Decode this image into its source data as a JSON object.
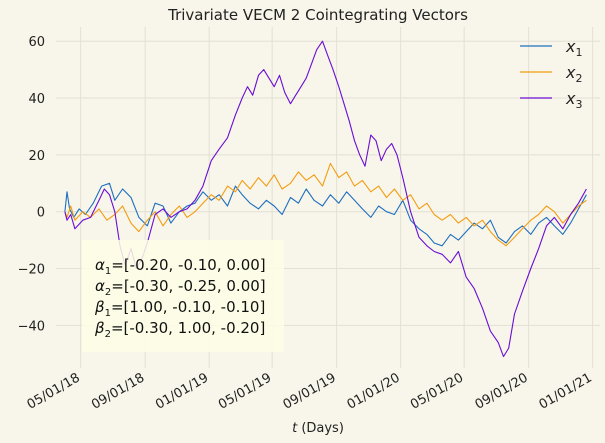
{
  "chart_data": {
    "type": "line",
    "title": "Trivariate VECM 2 Cointegrating Vectors",
    "xlabel_italic": "t",
    "xlabel_rest": " (Days)",
    "ylabel": "",
    "xlim": [
      "2018-03-15",
      "2021-01-15"
    ],
    "ylim": [
      -55,
      65
    ],
    "x_ticks": [
      "2018-05-01",
      "2018-09-01",
      "2019-01-01",
      "2019-05-01",
      "2019-09-01",
      "2020-01-01",
      "2020-05-01",
      "2020-09-01",
      "2021-01-01"
    ],
    "x_tick_labels": [
      "05/01/18",
      "09/01/18",
      "01/01/19",
      "05/01/19",
      "09/01/19",
      "01/01/20",
      "05/01/20",
      "09/01/20",
      "01/01/21"
    ],
    "y_ticks": [
      -40,
      -20,
      0,
      20,
      40,
      60
    ],
    "grid": true,
    "legend_placement": "top-right",
    "background": "#f8f6ea",
    "grid_color": "#e2e0d4",
    "annotation": {
      "lines": [
        {
          "sym": "α",
          "sub": "1",
          "text": "=[-0.20, -0.10, 0.00]"
        },
        {
          "sym": "α",
          "sub": "2",
          "text": "=[-0.30, -0.25, 0.00]"
        },
        {
          "sym": "β",
          "sub": "1",
          "text": "=[1.00, -0.10, -0.10]"
        },
        {
          "sym": "β",
          "sub": "2",
          "text": "=[-0.30, 1.00, -0.20]"
        }
      ],
      "box_color": "#fefee6"
    },
    "series": [
      {
        "name_base": "x",
        "name_sub": "1",
        "color": "#1f6fbf",
        "points": [
          [
            "2018-04-01",
            0
          ],
          [
            "2018-04-05",
            7
          ],
          [
            "2018-04-10",
            1
          ],
          [
            "2018-04-18",
            -2
          ],
          [
            "2018-04-28",
            1
          ],
          [
            "2018-05-10",
            -1
          ],
          [
            "2018-05-25",
            3
          ],
          [
            "2018-06-10",
            9
          ],
          [
            "2018-06-25",
            10
          ],
          [
            "2018-07-05",
            4
          ],
          [
            "2018-07-20",
            8
          ],
          [
            "2018-08-05",
            5
          ],
          [
            "2018-08-20",
            -2
          ],
          [
            "2018-09-05",
            -5
          ],
          [
            "2018-09-20",
            3
          ],
          [
            "2018-10-05",
            2
          ],
          [
            "2018-10-20",
            -4
          ],
          [
            "2018-11-05",
            0
          ],
          [
            "2018-11-20",
            2
          ],
          [
            "2018-12-05",
            3
          ],
          [
            "2018-12-20",
            7
          ],
          [
            "2019-01-05",
            4
          ],
          [
            "2019-01-20",
            6
          ],
          [
            "2019-02-05",
            2
          ],
          [
            "2019-02-20",
            9
          ],
          [
            "2019-03-05",
            6
          ],
          [
            "2019-03-20",
            3
          ],
          [
            "2019-04-05",
            1
          ],
          [
            "2019-04-20",
            4
          ],
          [
            "2019-05-05",
            2
          ],
          [
            "2019-05-20",
            -1
          ],
          [
            "2019-06-05",
            5
          ],
          [
            "2019-06-20",
            3
          ],
          [
            "2019-07-05",
            8
          ],
          [
            "2019-07-20",
            4
          ],
          [
            "2019-08-05",
            2
          ],
          [
            "2019-08-20",
            6
          ],
          [
            "2019-09-05",
            3
          ],
          [
            "2019-09-20",
            7
          ],
          [
            "2019-10-05",
            4
          ],
          [
            "2019-10-20",
            1
          ],
          [
            "2019-11-05",
            -2
          ],
          [
            "2019-11-20",
            2
          ],
          [
            "2019-12-05",
            0
          ],
          [
            "2019-12-20",
            -1
          ],
          [
            "2020-01-05",
            4
          ],
          [
            "2020-01-20",
            -3
          ],
          [
            "2020-02-05",
            -6
          ],
          [
            "2020-02-20",
            -8
          ],
          [
            "2020-03-05",
            -11
          ],
          [
            "2020-03-20",
            -12
          ],
          [
            "2020-04-05",
            -8
          ],
          [
            "2020-04-20",
            -10
          ],
          [
            "2020-05-05",
            -7
          ],
          [
            "2020-05-20",
            -4
          ],
          [
            "2020-06-05",
            -6
          ],
          [
            "2020-06-20",
            -3
          ],
          [
            "2020-07-05",
            -9
          ],
          [
            "2020-07-20",
            -11
          ],
          [
            "2020-08-05",
            -7
          ],
          [
            "2020-08-20",
            -5
          ],
          [
            "2020-09-05",
            -8
          ],
          [
            "2020-09-20",
            -4
          ],
          [
            "2020-10-05",
            -2
          ],
          [
            "2020-10-20",
            -5
          ],
          [
            "2020-11-05",
            -8
          ],
          [
            "2020-11-20",
            -4
          ],
          [
            "2020-12-05",
            1
          ],
          [
            "2020-12-20",
            6
          ]
        ]
      },
      {
        "name_base": "x",
        "name_sub": "2",
        "color": "#f39c12",
        "points": [
          [
            "2018-04-01",
            0
          ],
          [
            "2018-04-05",
            -2
          ],
          [
            "2018-04-12",
            2
          ],
          [
            "2018-04-20",
            -3
          ],
          [
            "2018-05-05",
            0
          ],
          [
            "2018-05-20",
            -2
          ],
          [
            "2018-06-05",
            1
          ],
          [
            "2018-06-20",
            -3
          ],
          [
            "2018-07-05",
            -1
          ],
          [
            "2018-07-20",
            2
          ],
          [
            "2018-08-05",
            -4
          ],
          [
            "2018-08-20",
            -7
          ],
          [
            "2018-09-05",
            -3
          ],
          [
            "2018-09-20",
            0
          ],
          [
            "2018-10-05",
            -5
          ],
          [
            "2018-10-20",
            -1
          ],
          [
            "2018-11-05",
            2
          ],
          [
            "2018-11-20",
            -2
          ],
          [
            "2018-12-05",
            0
          ],
          [
            "2018-12-20",
            3
          ],
          [
            "2019-01-05",
            6
          ],
          [
            "2019-01-20",
            4
          ],
          [
            "2019-02-05",
            9
          ],
          [
            "2019-02-20",
            7
          ],
          [
            "2019-03-05",
            11
          ],
          [
            "2019-03-20",
            8
          ],
          [
            "2019-04-05",
            12
          ],
          [
            "2019-04-20",
            9
          ],
          [
            "2019-05-05",
            13
          ],
          [
            "2019-05-20",
            8
          ],
          [
            "2019-06-05",
            10
          ],
          [
            "2019-06-20",
            14
          ],
          [
            "2019-07-05",
            11
          ],
          [
            "2019-07-20",
            13
          ],
          [
            "2019-08-05",
            9
          ],
          [
            "2019-08-20",
            17
          ],
          [
            "2019-09-05",
            12
          ],
          [
            "2019-09-20",
            14
          ],
          [
            "2019-10-05",
            9
          ],
          [
            "2019-10-20",
            11
          ],
          [
            "2019-11-05",
            7
          ],
          [
            "2019-11-20",
            9
          ],
          [
            "2019-12-05",
            5
          ],
          [
            "2019-12-20",
            8
          ],
          [
            "2020-01-05",
            4
          ],
          [
            "2020-01-20",
            6
          ],
          [
            "2020-02-05",
            1
          ],
          [
            "2020-02-20",
            3
          ],
          [
            "2020-03-05",
            -1
          ],
          [
            "2020-03-20",
            -3
          ],
          [
            "2020-04-05",
            -1
          ],
          [
            "2020-04-20",
            -4
          ],
          [
            "2020-05-05",
            -2
          ],
          [
            "2020-05-20",
            -5
          ],
          [
            "2020-06-05",
            -3
          ],
          [
            "2020-06-20",
            -7
          ],
          [
            "2020-07-05",
            -10
          ],
          [
            "2020-07-20",
            -12
          ],
          [
            "2020-08-05",
            -9
          ],
          [
            "2020-08-20",
            -6
          ],
          [
            "2020-09-05",
            -3
          ],
          [
            "2020-09-20",
            -1
          ],
          [
            "2020-10-05",
            2
          ],
          [
            "2020-10-20",
            0
          ],
          [
            "2020-11-05",
            -4
          ],
          [
            "2020-11-20",
            -1
          ],
          [
            "2020-12-05",
            2
          ],
          [
            "2020-12-20",
            4
          ]
        ]
      },
      {
        "name_base": "x",
        "name_sub": "3",
        "color": "#6a0dd6",
        "points": [
          [
            "2018-04-01",
            0
          ],
          [
            "2018-04-05",
            -3
          ],
          [
            "2018-04-12",
            -1
          ],
          [
            "2018-04-20",
            -6
          ],
          [
            "2018-05-05",
            -3
          ],
          [
            "2018-05-20",
            -2
          ],
          [
            "2018-06-05",
            4
          ],
          [
            "2018-06-15",
            8
          ],
          [
            "2018-06-25",
            6
          ],
          [
            "2018-07-05",
            0
          ],
          [
            "2018-07-15",
            -12
          ],
          [
            "2018-07-25",
            -19
          ],
          [
            "2018-08-05",
            -13
          ],
          [
            "2018-08-15",
            -20
          ],
          [
            "2018-08-25",
            -17
          ],
          [
            "2018-09-05",
            -11
          ],
          [
            "2018-09-20",
            -1
          ],
          [
            "2018-10-05",
            1
          ],
          [
            "2018-10-20",
            -2
          ],
          [
            "2018-11-05",
            0
          ],
          [
            "2018-11-20",
            1
          ],
          [
            "2018-12-05",
            4
          ],
          [
            "2018-12-20",
            9
          ],
          [
            "2019-01-05",
            18
          ],
          [
            "2019-01-20",
            22
          ],
          [
            "2019-02-05",
            26
          ],
          [
            "2019-02-20",
            34
          ],
          [
            "2019-03-05",
            40
          ],
          [
            "2019-03-15",
            44
          ],
          [
            "2019-03-25",
            41
          ],
          [
            "2019-04-05",
            48
          ],
          [
            "2019-04-15",
            50
          ],
          [
            "2019-04-25",
            47
          ],
          [
            "2019-05-05",
            44
          ],
          [
            "2019-05-15",
            48
          ],
          [
            "2019-05-25",
            42
          ],
          [
            "2019-06-05",
            38
          ],
          [
            "2019-06-15",
            41
          ],
          [
            "2019-06-25",
            44
          ],
          [
            "2019-07-05",
            47
          ],
          [
            "2019-07-15",
            52
          ],
          [
            "2019-07-25",
            57
          ],
          [
            "2019-08-05",
            60
          ],
          [
            "2019-08-15",
            55
          ],
          [
            "2019-08-25",
            50
          ],
          [
            "2019-09-05",
            44
          ],
          [
            "2019-09-15",
            38
          ],
          [
            "2019-09-25",
            32
          ],
          [
            "2019-10-05",
            25
          ],
          [
            "2019-10-15",
            20
          ],
          [
            "2019-10-25",
            16
          ],
          [
            "2019-11-05",
            27
          ],
          [
            "2019-11-15",
            25
          ],
          [
            "2019-11-25",
            18
          ],
          [
            "2019-12-05",
            22
          ],
          [
            "2019-12-15",
            24
          ],
          [
            "2019-12-25",
            20
          ],
          [
            "2020-01-05",
            12
          ],
          [
            "2020-01-20",
            0
          ],
          [
            "2020-02-05",
            -9
          ],
          [
            "2020-02-20",
            -12
          ],
          [
            "2020-03-05",
            -14
          ],
          [
            "2020-03-20",
            -15
          ],
          [
            "2020-04-05",
            -18
          ],
          [
            "2020-04-20",
            -14
          ],
          [
            "2020-05-05",
            -23
          ],
          [
            "2020-05-20",
            -27
          ],
          [
            "2020-06-05",
            -34
          ],
          [
            "2020-06-20",
            -42
          ],
          [
            "2020-07-05",
            -46
          ],
          [
            "2020-07-15",
            -51
          ],
          [
            "2020-07-25",
            -48
          ],
          [
            "2020-08-05",
            -36
          ],
          [
            "2020-08-20",
            -28
          ],
          [
            "2020-09-05",
            -20
          ],
          [
            "2020-09-20",
            -13
          ],
          [
            "2020-10-05",
            -5
          ],
          [
            "2020-10-20",
            -2
          ],
          [
            "2020-11-05",
            -6
          ],
          [
            "2020-11-20",
            -1
          ],
          [
            "2020-12-05",
            3
          ],
          [
            "2020-12-20",
            8
          ]
        ]
      }
    ]
  }
}
